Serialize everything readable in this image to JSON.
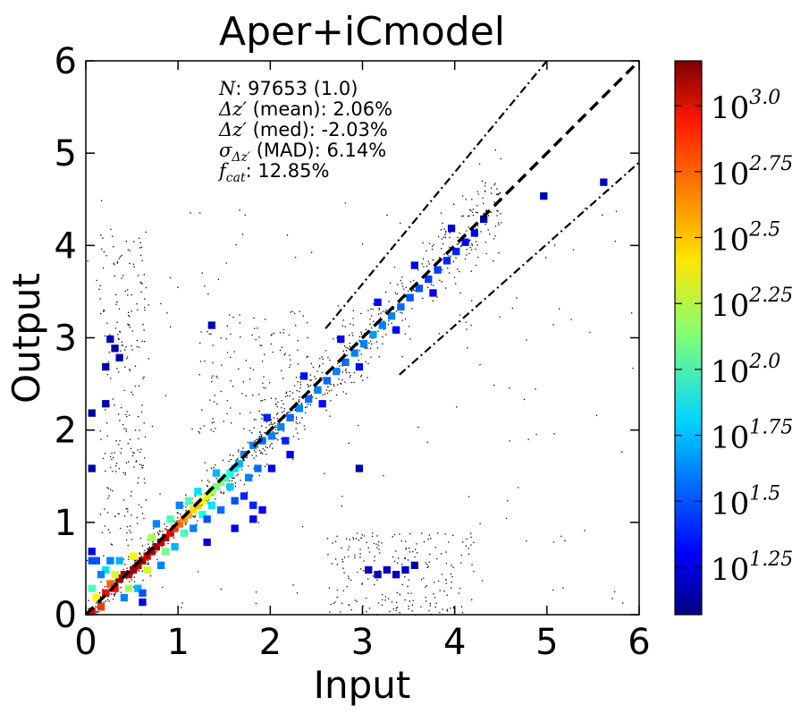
{
  "chart_data": {
    "type": "heatmap",
    "title": "Aper+iCmodel",
    "xlabel": "Input",
    "ylabel": "Output",
    "xlim": [
      0,
      6
    ],
    "ylim": [
      0,
      6
    ],
    "xticks": [
      "0",
      "1",
      "2",
      "3",
      "4",
      "5",
      "6"
    ],
    "yticks": [
      "0",
      "1",
      "2",
      "3",
      "4",
      "5",
      "6"
    ],
    "grid": false,
    "colormap": "jet",
    "colorbar": {
      "log10_range": [
        1.07,
        3.17
      ],
      "ticks": [
        {
          "log": 1.25,
          "base": "10",
          "exp": "1.25"
        },
        {
          "log": 1.5,
          "base": "10",
          "exp": "1.5"
        },
        {
          "log": 1.75,
          "base": "10",
          "exp": "1.75"
        },
        {
          "log": 2.0,
          "base": "10",
          "exp": "2.0"
        },
        {
          "log": 2.25,
          "base": "10",
          "exp": "2.25"
        },
        {
          "log": 2.5,
          "base": "10",
          "exp": "2.5"
        },
        {
          "log": 2.75,
          "base": "10",
          "exp": "2.75"
        },
        {
          "log": 3.0,
          "base": "10",
          "exp": "3.0"
        }
      ]
    },
    "stats": [
      {
        "symbol": "N",
        "sub": "",
        "rest": ": 97653 (1.0)"
      },
      {
        "symbol": "Δz′",
        "sub": "",
        "rest": " (mean): 2.06%"
      },
      {
        "symbol": "Δz′",
        "sub": "",
        "rest": " (med): -2.03%"
      },
      {
        "symbol": "σ",
        "sub": "Δz′",
        "rest": " (MAD): 6.14%"
      },
      {
        "symbol": "f",
        "sub": "cat",
        "rest": ": 12.85%"
      }
    ],
    "reference_lines": [
      {
        "style": "dashed",
        "kind": "one-to-one",
        "x": [
          0,
          6
        ],
        "y": [
          0,
          6
        ]
      },
      {
        "style": "dash-dot",
        "kind": "upper-outlier",
        "x": [
          2.6,
          5.0
        ],
        "y": [
          3.1,
          6.0
        ]
      },
      {
        "style": "dash-dot",
        "kind": "lower-outlier",
        "x": [
          3.4,
          6.0
        ],
        "y": [
          2.6,
          4.9
        ]
      }
    ],
    "density_cells": [
      [
        0.05,
        0.05,
        3.0
      ],
      [
        0.15,
        0.1,
        2.8
      ],
      [
        0.1,
        0.2,
        2.4
      ],
      [
        0.05,
        0.3,
        2.0
      ],
      [
        0.05,
        0.6,
        1.5
      ],
      [
        0.05,
        0.7,
        1.3
      ],
      [
        0.2,
        0.25,
        2.9
      ],
      [
        0.25,
        0.35,
        2.7
      ],
      [
        0.3,
        0.3,
        2.9
      ],
      [
        0.35,
        0.4,
        3.1
      ],
      [
        0.4,
        0.45,
        3.05
      ],
      [
        0.45,
        0.45,
        3.0
      ],
      [
        0.5,
        0.5,
        3.1
      ],
      [
        0.55,
        0.55,
        3.05
      ],
      [
        0.6,
        0.6,
        3.1
      ],
      [
        0.65,
        0.65,
        3.0
      ],
      [
        0.7,
        0.7,
        3.05
      ],
      [
        0.75,
        0.75,
        3.1
      ],
      [
        0.8,
        0.8,
        3.0
      ],
      [
        0.85,
        0.85,
        3.05
      ],
      [
        0.9,
        0.9,
        2.95
      ],
      [
        0.95,
        0.95,
        2.8
      ],
      [
        1.0,
        1.0,
        2.7
      ],
      [
        1.05,
        1.05,
        2.6
      ],
      [
        1.1,
        1.1,
        2.55
      ],
      [
        1.15,
        1.15,
        2.45
      ],
      [
        1.2,
        1.2,
        2.5
      ],
      [
        1.25,
        1.25,
        2.4
      ],
      [
        1.3,
        1.3,
        2.3
      ],
      [
        1.35,
        1.35,
        2.2
      ],
      [
        1.4,
        1.4,
        2.1
      ],
      [
        1.45,
        1.45,
        2.15
      ],
      [
        1.5,
        1.5,
        2.0
      ],
      [
        1.55,
        1.55,
        1.9
      ],
      [
        1.6,
        1.6,
        1.8
      ],
      [
        1.65,
        1.65,
        1.7
      ],
      [
        0.3,
        0.45,
        2.3
      ],
      [
        0.45,
        0.3,
        2.2
      ],
      [
        0.5,
        0.65,
        2.4
      ],
      [
        0.65,
        0.5,
        2.3
      ],
      [
        0.7,
        0.85,
        2.2
      ],
      [
        0.85,
        0.7,
        2.1
      ],
      [
        0.9,
        1.05,
        2.0
      ],
      [
        1.05,
        0.9,
        2.0
      ],
      [
        1.1,
        1.25,
        2.0
      ],
      [
        1.25,
        1.1,
        1.9
      ],
      [
        1.2,
        1.35,
        1.8
      ],
      [
        1.35,
        1.2,
        1.8
      ],
      [
        1.4,
        1.55,
        1.7
      ],
      [
        1.55,
        1.4,
        1.75
      ],
      [
        0.2,
        0.5,
        1.8
      ],
      [
        0.15,
        0.45,
        1.6
      ],
      [
        0.1,
        0.6,
        1.5
      ],
      [
        0.25,
        0.6,
        1.6
      ],
      [
        0.35,
        0.6,
        1.7
      ],
      [
        0.55,
        0.3,
        1.7
      ],
      [
        0.6,
        0.25,
        1.5
      ],
      [
        0.4,
        0.2,
        1.6
      ],
      [
        0.6,
        0.15,
        1.3
      ],
      [
        0.8,
        0.55,
        1.6
      ],
      [
        0.95,
        0.75,
        1.7
      ],
      [
        0.75,
        1.0,
        1.6
      ],
      [
        1.0,
        1.2,
        1.6
      ],
      [
        1.15,
        0.95,
        1.6
      ],
      [
        1.3,
        1.05,
        1.5
      ],
      [
        1.45,
        1.15,
        1.55
      ],
      [
        1.6,
        1.25,
        1.5
      ],
      [
        1.7,
        1.3,
        1.4
      ],
      [
        1.8,
        1.2,
        1.4
      ],
      [
        1.9,
        1.15,
        1.3
      ],
      [
        1.75,
        1.5,
        1.6
      ],
      [
        1.85,
        1.6,
        1.55
      ],
      [
        1.7,
        1.75,
        1.6
      ],
      [
        1.8,
        1.85,
        1.6
      ],
      [
        1.9,
        1.9,
        1.55
      ],
      [
        2.0,
        1.95,
        1.6
      ],
      [
        2.1,
        2.05,
        1.6
      ],
      [
        2.2,
        2.15,
        1.55
      ],
      [
        2.3,
        2.25,
        1.6
      ],
      [
        2.4,
        2.35,
        1.55
      ],
      [
        2.5,
        2.45,
        1.6
      ],
      [
        2.6,
        2.55,
        1.55
      ],
      [
        2.7,
        2.65,
        1.6
      ],
      [
        2.8,
        2.75,
        1.55
      ],
      [
        2.9,
        2.85,
        1.6
      ],
      [
        3.0,
        2.95,
        1.6
      ],
      [
        3.1,
        3.05,
        1.65
      ],
      [
        3.2,
        3.15,
        1.6
      ],
      [
        3.3,
        3.25,
        1.6
      ],
      [
        3.4,
        3.35,
        1.55
      ],
      [
        3.5,
        3.45,
        1.5
      ],
      [
        3.6,
        3.55,
        1.5
      ],
      [
        3.7,
        3.65,
        1.45
      ],
      [
        3.8,
        3.75,
        1.45
      ],
      [
        3.9,
        3.85,
        1.4
      ],
      [
        4.0,
        3.95,
        1.4
      ],
      [
        4.1,
        4.05,
        1.35
      ],
      [
        4.2,
        4.15,
        1.3
      ],
      [
        4.3,
        4.3,
        1.2
      ],
      [
        1.95,
        2.15,
        1.4
      ],
      [
        2.15,
        1.9,
        1.4
      ],
      [
        2.35,
        2.6,
        1.35
      ],
      [
        2.55,
        2.3,
        1.35
      ],
      [
        2.75,
        3.0,
        1.35
      ],
      [
        2.95,
        2.7,
        1.35
      ],
      [
        3.15,
        3.4,
        1.35
      ],
      [
        3.35,
        3.1,
        1.35
      ],
      [
        3.55,
        3.8,
        1.3
      ],
      [
        3.75,
        3.5,
        1.3
      ],
      [
        3.95,
        4.2,
        1.25
      ],
      [
        2.0,
        1.6,
        1.3
      ],
      [
        2.2,
        1.75,
        1.3
      ],
      [
        1.6,
        0.95,
        1.3
      ],
      [
        1.8,
        1.05,
        1.3
      ],
      [
        1.3,
        0.8,
        1.25
      ],
      [
        0.3,
        2.9,
        1.15
      ],
      [
        0.25,
        3.0,
        1.2
      ],
      [
        0.35,
        2.8,
        1.15
      ],
      [
        0.2,
        2.7,
        1.15
      ],
      [
        0.05,
        2.2,
        1.15
      ],
      [
        3.05,
        0.5,
        1.2
      ],
      [
        3.15,
        0.45,
        1.2
      ],
      [
        3.25,
        0.5,
        1.2
      ],
      [
        3.35,
        0.45,
        1.2
      ],
      [
        3.45,
        0.5,
        1.2
      ],
      [
        3.55,
        0.55,
        1.15
      ],
      [
        0.05,
        1.6,
        1.15
      ],
      [
        1.35,
        3.15,
        1.2
      ],
      [
        4.95,
        4.55,
        1.2
      ],
      [
        5.6,
        4.7,
        1.2
      ],
      [
        2.95,
        1.6,
        1.15
      ],
      [
        0.2,
        2.3,
        1.15
      ]
    ]
  }
}
